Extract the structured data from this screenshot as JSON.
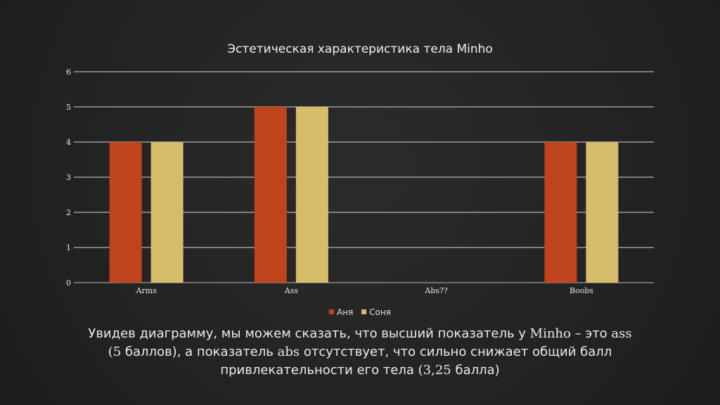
{
  "chart_data": {
    "type": "bar",
    "title": "Эстетическая характеристика тела Minho",
    "categories": [
      "Arms",
      "Ass",
      "Abs??",
      "Boobs"
    ],
    "series": [
      {
        "name": "Аня",
        "values": [
          4,
          5,
          0,
          4
        ],
        "color": "#c0441b"
      },
      {
        "name": "Соня",
        "values": [
          4,
          5,
          0,
          4
        ],
        "color": "#d6bd6a"
      }
    ],
    "ylim": [
      0,
      6
    ],
    "yticks": [
      0,
      1,
      2,
      3,
      4,
      5,
      6
    ],
    "grid": true,
    "legend": "bottom",
    "xlabel": "",
    "ylabel": ""
  },
  "caption": {
    "line1_a": "Увидев диаграмму, мы можем сказать, что высший показатель у ",
    "line1_b": "Minho",
    "line1_c": " – это ",
    "line1_d": "ass",
    "line2_a": "(5",
    "line2_b": " баллов), а показатель ",
    "line2_c": "abs",
    "line2_d": " отсутствует, что сильно снижает общий балл",
    "line3_a": "привлекательности его тела ",
    "line3_b": "(3,25",
    "line3_c": " балла)"
  },
  "colors": {
    "background": "#242424",
    "gridline": "#d8d8d8",
    "text": "#e8e8e8"
  }
}
